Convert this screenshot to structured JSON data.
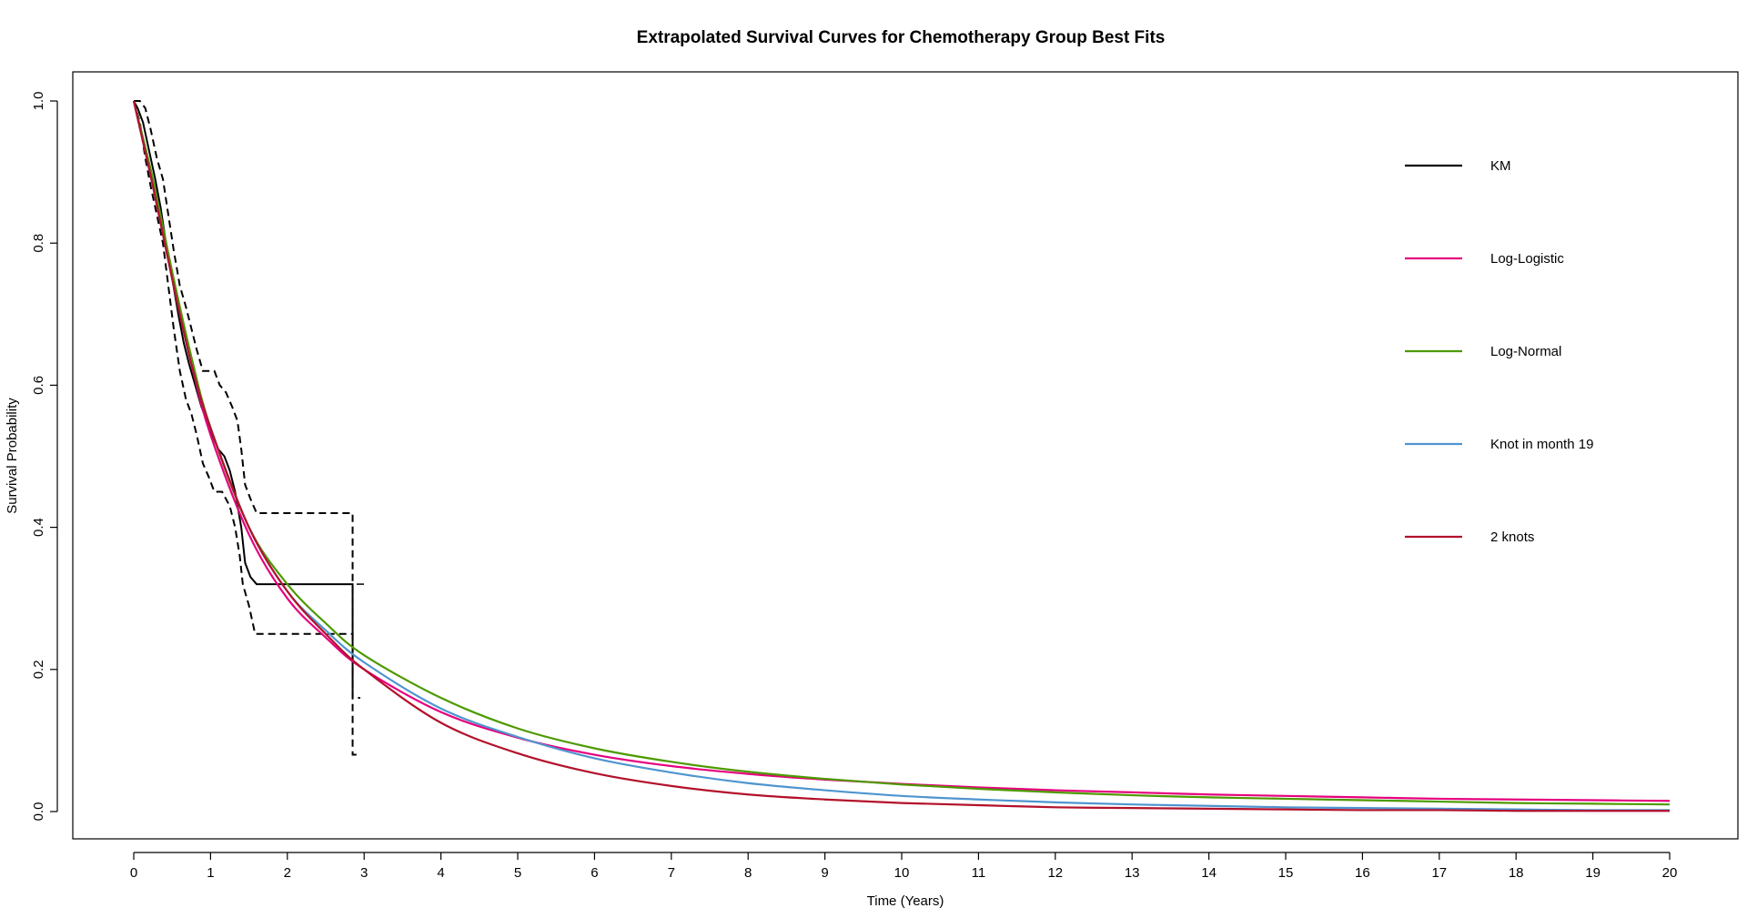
{
  "chart_data": {
    "type": "line",
    "title": "Extrapolated Survival Curves for Chemotherapy Group Best Fits",
    "xlabel": "Time (Years)",
    "ylabel": "Survival Probability",
    "xlim": [
      0,
      20
    ],
    "ylim": [
      0,
      1
    ],
    "x_ticks": [
      "0",
      "1",
      "2",
      "3",
      "4",
      "5",
      "6",
      "7",
      "8",
      "9",
      "10",
      "11",
      "12",
      "13",
      "14",
      "15",
      "16",
      "17",
      "18",
      "19",
      "20"
    ],
    "y_ticks": [
      "0.0",
      "0.2",
      "0.4",
      "0.6",
      "0.8",
      "1.0"
    ],
    "grid": false,
    "legend_position": "top-right",
    "legend": [
      {
        "name": "KM",
        "color": "#000000"
      },
      {
        "name": "Log-Logistic",
        "color": "#e6007e"
      },
      {
        "name": "Log-Normal",
        "color": "#4d9a00"
      },
      {
        "name": "Knot in month 19",
        "color": "#4f95cf"
      },
      {
        "name": "2 knots",
        "color": "#b3112b"
      }
    ],
    "km": {
      "color": "#000000",
      "estimate": [
        [
          0,
          1.0
        ],
        [
          0.05,
          0.99
        ],
        [
          0.12,
          0.97
        ],
        [
          0.2,
          0.93
        ],
        [
          0.28,
          0.89
        ],
        [
          0.35,
          0.85
        ],
        [
          0.42,
          0.8
        ],
        [
          0.5,
          0.75
        ],
        [
          0.58,
          0.7
        ],
        [
          0.65,
          0.66
        ],
        [
          0.72,
          0.63
        ],
        [
          0.8,
          0.6
        ],
        [
          0.88,
          0.57
        ],
        [
          0.95,
          0.55
        ],
        [
          1.02,
          0.53
        ],
        [
          1.1,
          0.51
        ],
        [
          1.18,
          0.5
        ],
        [
          1.25,
          0.48
        ],
        [
          1.32,
          0.45
        ],
        [
          1.4,
          0.4
        ],
        [
          1.45,
          0.35
        ],
        [
          1.52,
          0.33
        ],
        [
          1.6,
          0.32
        ],
        [
          2.85,
          0.32
        ],
        [
          2.85,
          0.16
        ]
      ],
      "upper": [
        [
          0,
          1.0
        ],
        [
          0.08,
          1.0
        ],
        [
          0.15,
          0.99
        ],
        [
          0.22,
          0.96
        ],
        [
          0.3,
          0.92
        ],
        [
          0.38,
          0.89
        ],
        [
          0.45,
          0.84
        ],
        [
          0.52,
          0.79
        ],
        [
          0.6,
          0.74
        ],
        [
          0.68,
          0.71
        ],
        [
          0.75,
          0.68
        ],
        [
          0.82,
          0.65
        ],
        [
          0.9,
          0.62
        ],
        [
          1.05,
          0.62
        ],
        [
          1.12,
          0.6
        ],
        [
          1.2,
          0.59
        ],
        [
          1.28,
          0.57
        ],
        [
          1.35,
          0.55
        ],
        [
          1.4,
          0.51
        ],
        [
          1.45,
          0.46
        ],
        [
          1.52,
          0.44
        ],
        [
          1.6,
          0.42
        ],
        [
          2.85,
          0.42
        ],
        [
          2.85,
          0.08
        ],
        [
          2.95,
          0.08
        ]
      ],
      "lower": [
        [
          0,
          1.0
        ],
        [
          0.08,
          0.97
        ],
        [
          0.15,
          0.92
        ],
        [
          0.22,
          0.88
        ],
        [
          0.3,
          0.84
        ],
        [
          0.38,
          0.8
        ],
        [
          0.45,
          0.74
        ],
        [
          0.52,
          0.68
        ],
        [
          0.6,
          0.62
        ],
        [
          0.68,
          0.58
        ],
        [
          0.75,
          0.56
        ],
        [
          0.82,
          0.53
        ],
        [
          0.9,
          0.49
        ],
        [
          0.98,
          0.47
        ],
        [
          1.05,
          0.45
        ],
        [
          1.15,
          0.45
        ],
        [
          1.25,
          0.43
        ],
        [
          1.32,
          0.4
        ],
        [
          1.38,
          0.36
        ],
        [
          1.42,
          0.32
        ],
        [
          1.5,
          0.29
        ],
        [
          1.58,
          0.25
        ],
        [
          2.85,
          0.25
        ],
        [
          2.85,
          0.16
        ],
        [
          2.95,
          0.16
        ]
      ],
      "censor_marks": [
        [
          2.95,
          0.32
        ]
      ]
    },
    "series": [
      {
        "name": "Log-Logistic",
        "color": "#e6007e",
        "x": [
          0,
          0.25,
          0.5,
          0.75,
          1,
          1.5,
          2,
          2.5,
          3,
          4,
          5,
          6,
          7,
          8,
          9,
          10,
          11,
          12,
          13,
          14,
          15,
          16,
          17,
          18,
          19,
          20
        ],
        "values": [
          1.0,
          0.88,
          0.75,
          0.63,
          0.53,
          0.39,
          0.3,
          0.245,
          0.2,
          0.14,
          0.104,
          0.08,
          0.064,
          0.053,
          0.045,
          0.039,
          0.034,
          0.03,
          0.027,
          0.024,
          0.022,
          0.02,
          0.018,
          0.017,
          0.016,
          0.015
        ]
      },
      {
        "name": "Log-Normal",
        "color": "#4d9a00",
        "x": [
          0,
          0.25,
          0.5,
          0.75,
          1,
          1.5,
          2,
          2.5,
          3,
          4,
          5,
          6,
          7,
          8,
          9,
          10,
          11,
          12,
          13,
          14,
          15,
          16,
          17,
          18,
          19,
          20
        ],
        "values": [
          1.0,
          0.89,
          0.76,
          0.64,
          0.54,
          0.4,
          0.32,
          0.265,
          0.22,
          0.16,
          0.117,
          0.089,
          0.07,
          0.056,
          0.046,
          0.038,
          0.032,
          0.027,
          0.023,
          0.02,
          0.018,
          0.016,
          0.014,
          0.012,
          0.011,
          0.01
        ]
      },
      {
        "name": "Knot in month 19",
        "color": "#4f95cf",
        "x": [
          0,
          0.25,
          0.5,
          0.75,
          1,
          1.5,
          2,
          2.5,
          3,
          4,
          5,
          6,
          7,
          8,
          9,
          10,
          11,
          12,
          13,
          14,
          15,
          16,
          17,
          18,
          19,
          20
        ],
        "values": [
          1.0,
          0.88,
          0.75,
          0.63,
          0.54,
          0.4,
          0.31,
          0.255,
          0.21,
          0.145,
          0.105,
          0.075,
          0.055,
          0.04,
          0.03,
          0.022,
          0.017,
          0.013,
          0.01,
          0.008,
          0.006,
          0.005,
          0.004,
          0.003,
          0.002,
          0.002
        ]
      },
      {
        "name": "2 knots",
        "color": "#b3112b",
        "x": [
          0,
          0.25,
          0.5,
          0.75,
          1,
          1.5,
          2,
          2.5,
          3,
          4,
          5,
          6,
          7,
          8,
          9,
          10,
          11,
          12,
          13,
          14,
          15,
          16,
          17,
          18,
          19,
          20
        ],
        "values": [
          1.0,
          0.88,
          0.75,
          0.63,
          0.54,
          0.4,
          0.31,
          0.25,
          0.2,
          0.125,
          0.082,
          0.054,
          0.036,
          0.024,
          0.017,
          0.012,
          0.009,
          0.006,
          0.005,
          0.004,
          0.003,
          0.002,
          0.002,
          0.001,
          0.001,
          0.001
        ]
      }
    ]
  }
}
